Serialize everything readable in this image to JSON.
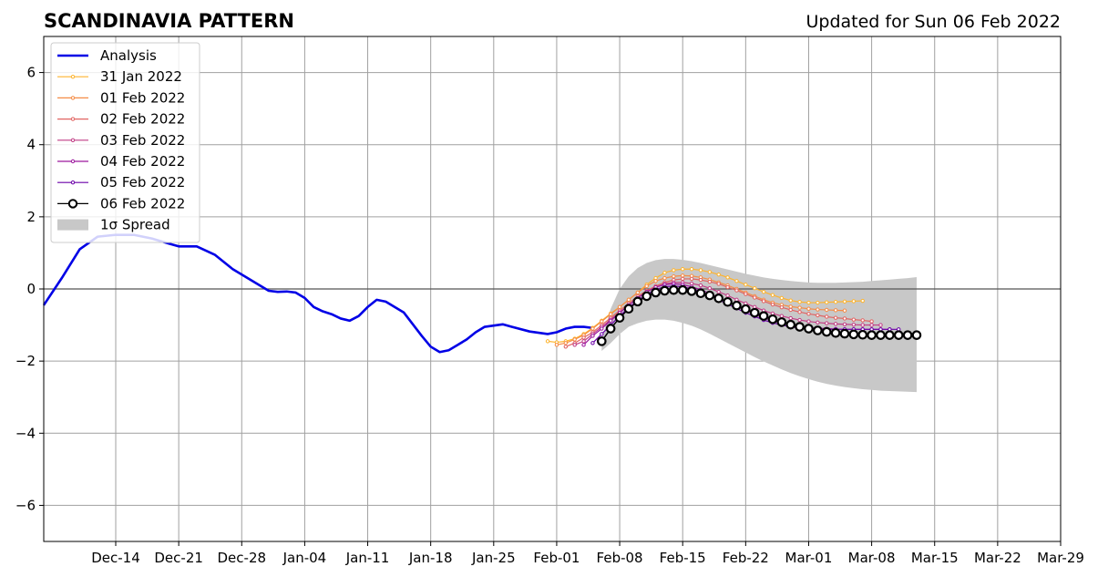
{
  "title": "SCANDINAVIA PATTERN",
  "updated": "Updated for Sun 06 Feb 2022",
  "colors": {
    "analysis": "#0000e6",
    "spread": "#c8c8c8",
    "grid": "#a0a0a0",
    "series": [
      "#fdb42f",
      "#f58c46",
      "#e16462",
      "#c13d85",
      "#9c179e",
      "#6a00a8",
      "#000000"
    ]
  },
  "chart_data": {
    "type": "line",
    "title": "SCANDINAVIA PATTERN",
    "xlabel": "",
    "ylabel": "",
    "xlim": [
      "2021-12-06",
      "2022-03-29"
    ],
    "ylim": [
      -7,
      7
    ],
    "x_ticks": [
      "Dec-14",
      "Dec-21",
      "Dec-28",
      "Jan-04",
      "Jan-11",
      "Jan-18",
      "Jan-25",
      "Feb-01",
      "Feb-08",
      "Feb-15",
      "Feb-22",
      "Mar-01",
      "Mar-08",
      "Mar-15",
      "Mar-22",
      "Mar-29"
    ],
    "y_ticks": [
      6,
      4,
      2,
      0,
      -2,
      -4,
      -6
    ],
    "y_tick_labels": [
      "6",
      "4",
      "2",
      "0",
      "−2",
      "−4",
      "−6"
    ],
    "grid": true,
    "legend_position": "top-left",
    "analysis": {
      "name": "Analysis",
      "dates": [
        "2021-12-06",
        "2021-12-08",
        "2021-12-10",
        "2021-12-12",
        "2021-12-14",
        "2021-12-16",
        "2021-12-18",
        "2021-12-20",
        "2021-12-21",
        "2021-12-23",
        "2021-12-25",
        "2021-12-27",
        "2021-12-29",
        "2021-12-31",
        "2022-01-01",
        "2022-01-02",
        "2022-01-03",
        "2022-01-04",
        "2022-01-05",
        "2022-01-06",
        "2022-01-07",
        "2022-01-08",
        "2022-01-09",
        "2022-01-10",
        "2022-01-11",
        "2022-01-12",
        "2022-01-13",
        "2022-01-15",
        "2022-01-17",
        "2022-01-18",
        "2022-01-19",
        "2022-01-20",
        "2022-01-21",
        "2022-01-22",
        "2022-01-23",
        "2022-01-24",
        "2022-01-26",
        "2022-01-27",
        "2022-01-29",
        "2022-01-31",
        "2022-02-01",
        "2022-02-02",
        "2022-02-03",
        "2022-02-04",
        "2022-02-05"
      ],
      "values": [
        -0.45,
        0.3,
        1.1,
        1.45,
        1.5,
        1.5,
        1.4,
        1.25,
        1.18,
        1.18,
        0.95,
        0.55,
        0.25,
        -0.05,
        -0.08,
        -0.07,
        -0.1,
        -0.25,
        -0.5,
        -0.62,
        -0.7,
        -0.82,
        -0.88,
        -0.75,
        -0.5,
        -0.3,
        -0.35,
        -0.65,
        -1.3,
        -1.6,
        -1.75,
        -1.7,
        -1.55,
        -1.4,
        -1.2,
        -1.05,
        -0.98,
        -1.05,
        -1.18,
        -1.25,
        -1.2,
        -1.1,
        -1.05,
        -1.05,
        -1.08
      ]
    },
    "forecasts": [
      {
        "name": "31 Jan 2022",
        "start": "2022-01-31",
        "values": [
          -1.45,
          -1.48,
          -1.45,
          -1.38,
          -1.25,
          -1.08,
          -0.88,
          -0.68,
          -0.5,
          -0.3,
          -0.1,
          0.12,
          0.3,
          0.45,
          0.52,
          0.55,
          0.55,
          0.52,
          0.47,
          0.4,
          0.32,
          0.22,
          0.12,
          0.02,
          -0.08,
          -0.17,
          -0.25,
          -0.32,
          -0.36,
          -0.38,
          -0.38,
          -0.37,
          -0.36,
          -0.35,
          -0.34,
          -0.33
        ]
      },
      {
        "name": "01 Feb 2022",
        "start": "2022-02-01",
        "values": [
          -1.55,
          -1.5,
          -1.4,
          -1.28,
          -1.1,
          -0.9,
          -0.7,
          -0.5,
          -0.3,
          -0.1,
          0.08,
          0.22,
          0.3,
          0.35,
          0.37,
          0.36,
          0.32,
          0.26,
          0.18,
          0.1,
          0.0,
          -0.1,
          -0.2,
          -0.3,
          -0.38,
          -0.44,
          -0.49,
          -0.52,
          -0.55,
          -0.57,
          -0.58,
          -0.59,
          -0.6
        ]
      },
      {
        "name": "02 Feb 2022",
        "start": "2022-02-02",
        "values": [
          -1.6,
          -1.5,
          -1.35,
          -1.2,
          -1.0,
          -0.8,
          -0.6,
          -0.4,
          -0.2,
          -0.05,
          0.08,
          0.18,
          0.25,
          0.28,
          0.28,
          0.25,
          0.2,
          0.14,
          0.05,
          -0.04,
          -0.14,
          -0.24,
          -0.34,
          -0.43,
          -0.51,
          -0.58,
          -0.64,
          -0.69,
          -0.73,
          -0.77,
          -0.8,
          -0.82,
          -0.85,
          -0.87,
          -0.9
        ]
      },
      {
        "name": "03 Feb 2022",
        "start": "2022-02-03",
        "values": [
          -1.55,
          -1.45,
          -1.25,
          -1.05,
          -0.85,
          -0.65,
          -0.45,
          -0.25,
          -0.08,
          0.05,
          0.14,
          0.18,
          0.18,
          0.15,
          0.1,
          0.02,
          -0.08,
          -0.18,
          -0.3,
          -0.4,
          -0.5,
          -0.6,
          -0.68,
          -0.75,
          -0.81,
          -0.86,
          -0.9,
          -0.93,
          -0.95,
          -0.97,
          -0.98,
          -0.99,
          -1.0,
          -1.0,
          -1.0
        ]
      },
      {
        "name": "04 Feb 2022",
        "start": "2022-02-04",
        "values": [
          -1.55,
          -1.3,
          -1.1,
          -0.88,
          -0.66,
          -0.45,
          -0.25,
          -0.08,
          0.05,
          0.12,
          0.14,
          0.12,
          0.06,
          -0.02,
          -0.12,
          -0.24,
          -0.36,
          -0.48,
          -0.6,
          -0.7,
          -0.8,
          -0.88,
          -0.95,
          -1.0,
          -1.04,
          -1.07,
          -1.09,
          -1.1,
          -1.11,
          -1.12,
          -1.12,
          -1.12,
          -1.12,
          -1.12,
          -1.12
        ]
      },
      {
        "name": "05 Feb 2022",
        "start": "2022-02-05",
        "values": [
          -1.5,
          -1.25,
          -1.0,
          -0.75,
          -0.52,
          -0.32,
          -0.15,
          -0.02,
          0.06,
          0.08,
          0.06,
          0.0,
          -0.08,
          -0.18,
          -0.3,
          -0.42,
          -0.54,
          -0.66,
          -0.76,
          -0.86,
          -0.94,
          -1.0,
          -1.05,
          -1.08,
          -1.1,
          -1.11,
          -1.12,
          -1.12,
          -1.12,
          -1.12,
          -1.12,
          -1.12,
          -1.12,
          -1.12,
          -1.12
        ]
      },
      {
        "name": "06 Feb 2022",
        "start": "2022-02-06",
        "values": [
          -1.45,
          -1.1,
          -0.8,
          -0.55,
          -0.35,
          -0.2,
          -0.1,
          -0.05,
          -0.03,
          -0.03,
          -0.06,
          -0.12,
          -0.18,
          -0.26,
          -0.36,
          -0.46,
          -0.56,
          -0.66,
          -0.75,
          -0.84,
          -0.92,
          -0.99,
          -1.05,
          -1.1,
          -1.15,
          -1.19,
          -1.22,
          -1.24,
          -1.26,
          -1.27,
          -1.28,
          -1.28,
          -1.28,
          -1.28,
          -1.28,
          -1.28
        ]
      }
    ],
    "spread": {
      "name": "1σ Spread",
      "start": "2022-02-06",
      "upper": [
        -1.4,
        -0.55,
        0.0,
        0.35,
        0.58,
        0.72,
        0.8,
        0.83,
        0.83,
        0.81,
        0.77,
        0.72,
        0.66,
        0.6,
        0.54,
        0.48,
        0.42,
        0.37,
        0.32,
        0.28,
        0.25,
        0.22,
        0.2,
        0.18,
        0.17,
        0.17,
        0.17,
        0.18,
        0.19,
        0.2,
        0.22,
        0.24,
        0.26,
        0.28,
        0.3,
        0.33
      ],
      "lower": [
        -1.72,
        -1.5,
        -1.25,
        -1.05,
        -0.95,
        -0.88,
        -0.85,
        -0.85,
        -0.88,
        -0.94,
        -1.02,
        -1.12,
        -1.24,
        -1.37,
        -1.5,
        -1.63,
        -1.76,
        -1.89,
        -2.01,
        -2.12,
        -2.23,
        -2.33,
        -2.42,
        -2.5,
        -2.57,
        -2.63,
        -2.68,
        -2.72,
        -2.75,
        -2.78,
        -2.8,
        -2.82,
        -2.83,
        -2.84,
        -2.85,
        -2.86
      ]
    }
  }
}
